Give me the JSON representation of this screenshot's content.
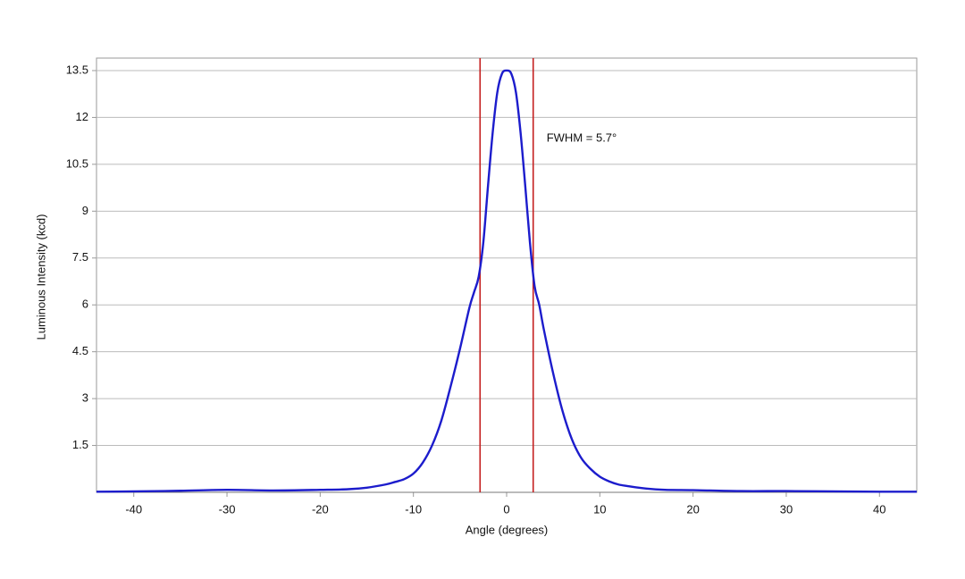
{
  "chart_data": {
    "type": "line",
    "xlabel": "Angle (degrees)",
    "ylabel": "Luminous Intensity (kcd)",
    "annotation": "FWHM = 5.7°",
    "x": [
      -44,
      -40,
      -35,
      -30,
      -25,
      -20,
      -17,
      -15,
      -13,
      -12,
      -11,
      -10,
      -9,
      -8,
      -7,
      -6,
      -5,
      -4,
      -3.5,
      -3,
      -2.5,
      -2,
      -1.5,
      -1,
      -0.5,
      0,
      0.5,
      1,
      1.5,
      2,
      2.5,
      3,
      3.5,
      4,
      5,
      6,
      7,
      8,
      9,
      10,
      11,
      12,
      13,
      15,
      17,
      20,
      25,
      30,
      35,
      40,
      44
    ],
    "series": [
      {
        "name": "Luminous Intensity",
        "color": "#1c1ccc",
        "values": [
          0.02,
          0.03,
          0.05,
          0.08,
          0.06,
          0.08,
          0.1,
          0.15,
          0.25,
          0.33,
          0.42,
          0.6,
          0.95,
          1.5,
          2.3,
          3.4,
          4.6,
          5.9,
          6.4,
          6.9,
          8.0,
          9.8,
          11.5,
          12.8,
          13.4,
          13.5,
          13.4,
          12.8,
          11.5,
          9.8,
          8.0,
          6.6,
          6.0,
          5.2,
          3.8,
          2.6,
          1.7,
          1.1,
          0.75,
          0.5,
          0.35,
          0.25,
          0.2,
          0.12,
          0.08,
          0.07,
          0.04,
          0.04,
          0.03,
          0.02,
          0.02
        ]
      }
    ],
    "vlines": [
      -2.85,
      2.85
    ],
    "vline_color": "#c42020",
    "xlim": [
      -44,
      44
    ],
    "ylim": [
      0,
      13.9
    ],
    "xticks": [
      -40,
      -30,
      -20,
      -10,
      0,
      10,
      20,
      30,
      40
    ],
    "yticks": [
      1.5,
      3,
      4.5,
      6,
      7.5,
      9,
      10.5,
      12,
      13.5
    ],
    "grid": true
  }
}
